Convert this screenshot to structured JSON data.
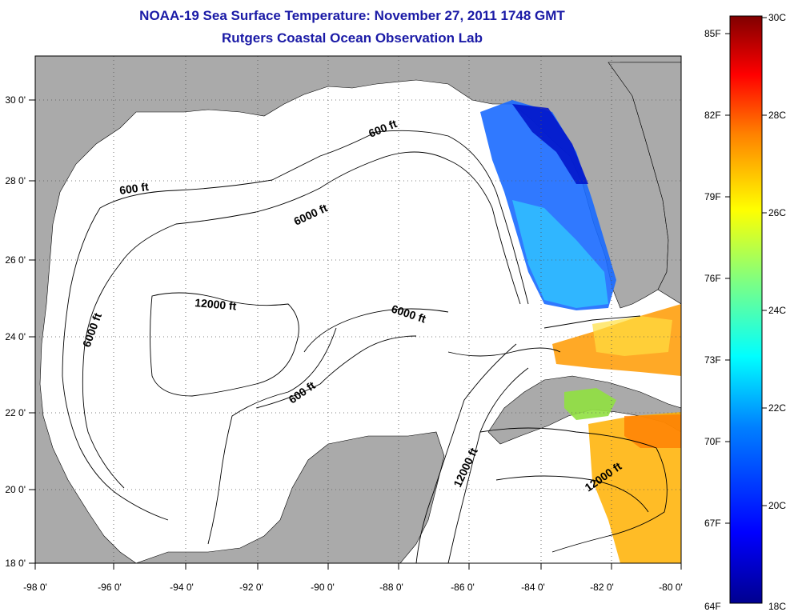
{
  "title": "NOAA-19 Sea Surface Temperature:  November 27, 2011 1748 GMT",
  "subtitle": "Rutgers Coastal Ocean Observation Lab",
  "map": {
    "lon_range": [
      -98,
      -80
    ],
    "lat_range": [
      18,
      31
    ],
    "lon_ticks": [
      "-98 0'",
      "-96 0'",
      "-94 0'",
      "-92 0'",
      "-90 0'",
      "-88 0'",
      "-86 0'",
      "-84 0'",
      "-82 0'",
      "-80 0'"
    ],
    "lat_ticks": [
      "18 0'",
      "20 0'",
      "22 0'",
      "24 0'",
      "26 0'",
      "28 0'",
      "30 0'"
    ],
    "contour_labels": [
      "600 ft",
      "600 ft",
      "6000 ft",
      "6000 ft",
      "12000 ft",
      "6000 ft",
      "600 ft",
      "12000 ft",
      "12000 ft"
    ],
    "land_color": "#aaaaaa",
    "water_color": "#ffffff"
  },
  "colorbar": {
    "fahrenheit_labels": [
      "85F",
      "82F",
      "79F",
      "76F",
      "73F",
      "70F",
      "67F",
      "64F"
    ],
    "celsius_labels": [
      "30C",
      "28C",
      "26C",
      "24C",
      "22C",
      "20C",
      "18C"
    ],
    "colors": [
      "#00008f",
      "#0000ff",
      "#0080ff",
      "#00ffff",
      "#80ff80",
      "#ffff00",
      "#ff8000",
      "#ff0000",
      "#800000"
    ]
  }
}
